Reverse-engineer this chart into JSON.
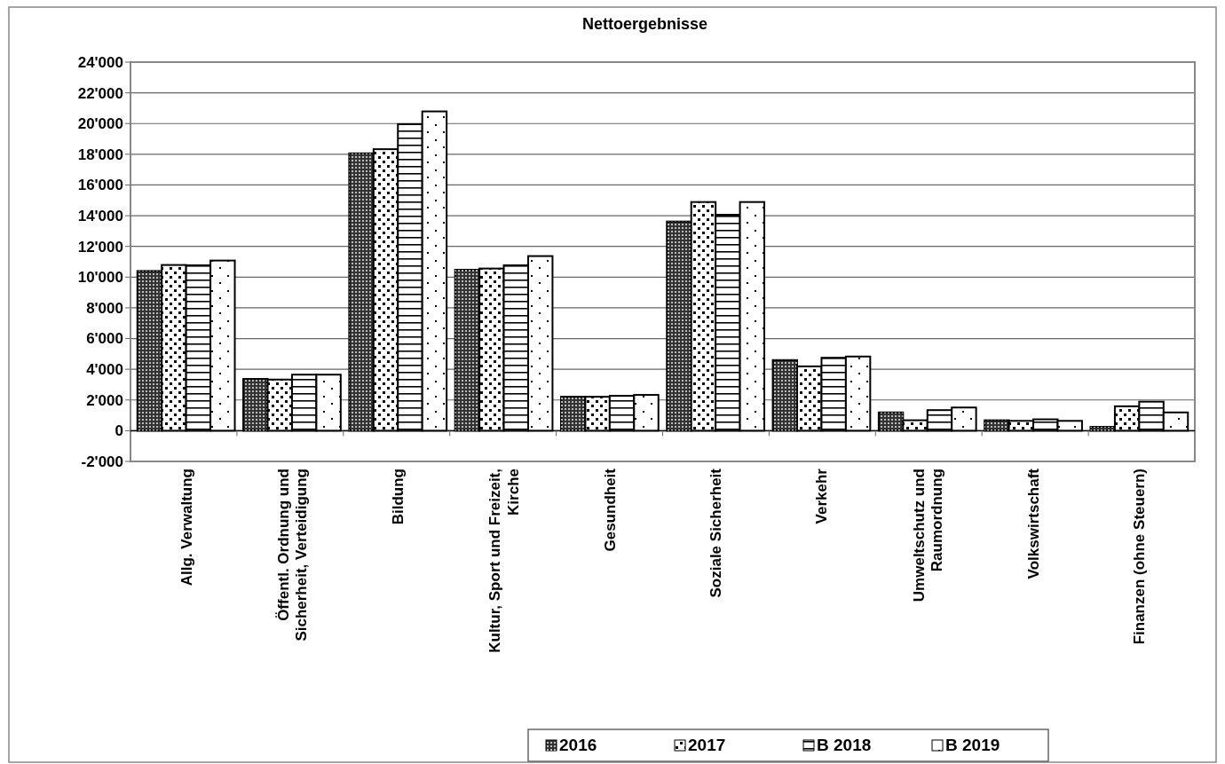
{
  "chart_data": {
    "type": "bar",
    "title": "Nettoergebnisse",
    "categories": [
      "Allg. Verwaltung",
      "Öffentl. Ordnung und Sicherheit, Verteidigung",
      "Bildung",
      "Kultur, Sport und Freizeit, Kirche",
      "Gesundheit",
      "Soziale Sicherheit",
      "Verkehr",
      "Umweltschutz und Raumordnung",
      "Volkswirtschaft",
      "Finanzen (ohne Steuern)"
    ],
    "series": [
      {
        "name": "2016",
        "color": "#333333",
        "values": [
          10400,
          3370,
          18060,
          10480,
          2210,
          13620,
          4600,
          1190,
          680,
          250
        ]
      },
      {
        "name": "2017",
        "color": "#ffffff",
        "values": [
          10790,
          3330,
          18330,
          10560,
          2210,
          14890,
          4190,
          680,
          640,
          1590
        ]
      },
      {
        "name": "B 2018",
        "color": "#ffffff",
        "values": [
          10770,
          3650,
          19960,
          10770,
          2270,
          14060,
          4750,
          1340,
          740,
          1890
        ]
      },
      {
        "name": "B 2019",
        "color": "#ffffff",
        "values": [
          11080,
          3650,
          20790,
          11370,
          2330,
          14890,
          4830,
          1510,
          640,
          1190
        ]
      }
    ],
    "ylim": [
      -2000,
      24000
    ],
    "yticks": [
      {
        "value": -2000,
        "label": "-2'000"
      },
      0,
      {
        "value": 2000,
        "label": "2'000"
      },
      {
        "value": 4000,
        "label": "4'000"
      },
      {
        "value": 6000,
        "label": "6'000"
      },
      {
        "value": 8000,
        "label": "8'000"
      },
      {
        "value": 10000,
        "label": "10'000"
      },
      {
        "value": 12000,
        "label": "12'000"
      },
      {
        "value": 14000,
        "label": "14'000"
      },
      {
        "value": 16000,
        "label": "16'000"
      },
      {
        "value": 18000,
        "label": "18'000"
      },
      {
        "value": 20000,
        "label": "20'000"
      },
      {
        "value": 22000,
        "label": "22'000"
      },
      {
        "value": 24000,
        "label": "24'000"
      }
    ],
    "grid": "y",
    "legend": "bottom"
  }
}
